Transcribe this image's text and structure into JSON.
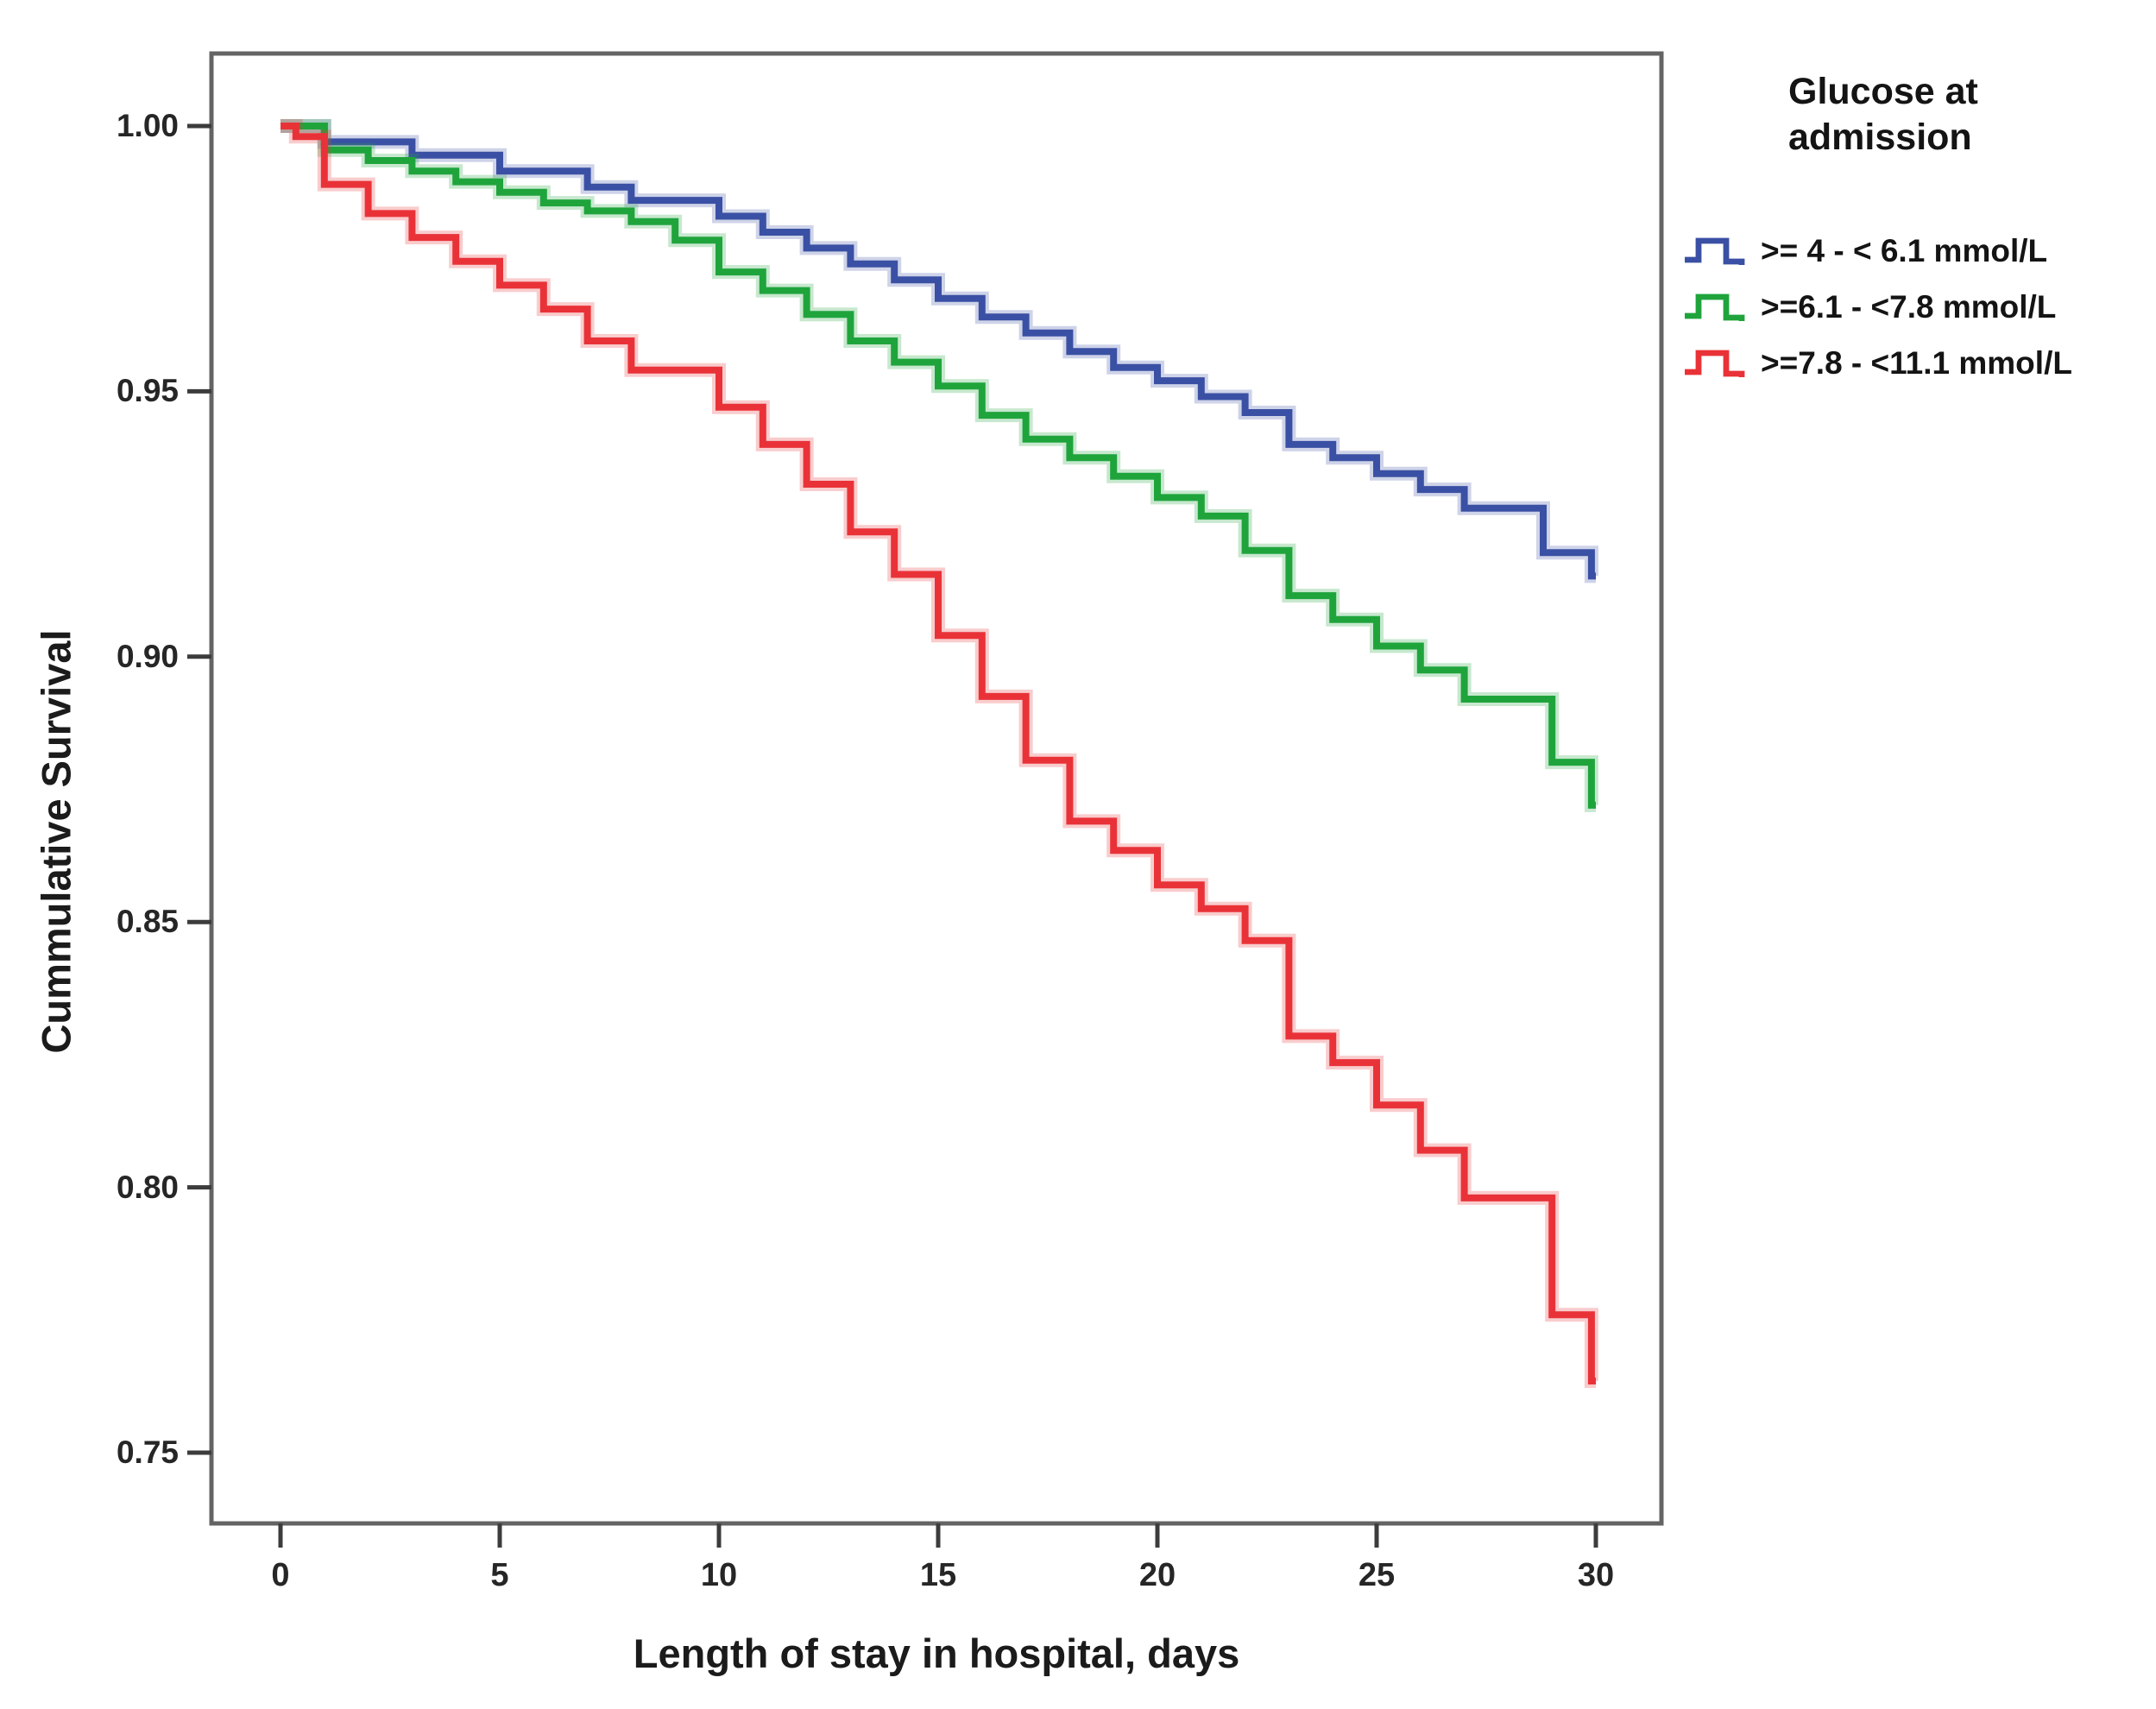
{
  "page": {
    "background": "#ffffff"
  },
  "chart_data": {
    "type": "line",
    "subtype": "kaplan-meier-step",
    "title": "",
    "xlabel": "Length of stay in hospital, days",
    "ylabel": "Cummulative Survival",
    "grid": false,
    "xlim": [
      -1.6,
      31.5
    ],
    "ylim": [
      0.7367,
      1.0137
    ],
    "x_ticks": [
      0,
      5,
      10,
      15,
      20,
      25,
      30
    ],
    "y_ticks": [
      "1.00",
      "0.95",
      "0.90",
      "0.85",
      "0.80",
      "0.75"
    ],
    "y_tick_values": [
      1.0,
      0.95,
      0.9,
      0.85,
      0.8,
      0.75
    ],
    "axis_color": "#646464",
    "tick_color": "#3c3c3c",
    "legend": {
      "position": "right-top",
      "title_lines": [
        "Glucose at",
        "admission"
      ],
      "entries": [
        {
          "label": ">= 4 - < 6.1 mmol/L",
          "color": "#3A50A4"
        },
        {
          "label": ">=6.1 - <7.8 mmol/L",
          "color": "#1FA43C"
        },
        {
          "label": ">=7.8 - <11.1 mmol/L",
          "color": "#E93238"
        }
      ]
    },
    "series": [
      {
        "name": ">= 4 - < 6.1 mmol/L",
        "color": "#3A50A4",
        "step_points": [
          [
            0,
            1.0
          ],
          [
            1,
            0.997
          ],
          [
            3,
            0.9945
          ],
          [
            5,
            0.9915
          ],
          [
            7,
            0.9885
          ],
          [
            8,
            0.986
          ],
          [
            10,
            0.983
          ],
          [
            11,
            0.98
          ],
          [
            12,
            0.977
          ],
          [
            13,
            0.974
          ],
          [
            14,
            0.971
          ],
          [
            15,
            0.9675
          ],
          [
            16,
            0.964
          ],
          [
            17,
            0.961
          ],
          [
            18,
            0.9575
          ],
          [
            19,
            0.9545
          ],
          [
            20,
            0.952
          ],
          [
            21,
            0.949
          ],
          [
            22,
            0.946
          ],
          [
            23,
            0.94
          ],
          [
            24,
            0.9375
          ],
          [
            25,
            0.9345
          ],
          [
            26,
            0.9315
          ],
          [
            27,
            0.928
          ],
          [
            28.8,
            0.9196
          ],
          [
            29.9,
            0.9152
          ],
          [
            30,
            0.9152
          ]
        ]
      },
      {
        "name": ">=6.1 - <7.8 mmol/L",
        "color": "#1FA43C",
        "step_points": [
          [
            0,
            1.0
          ],
          [
            1,
            0.9955
          ],
          [
            2,
            0.9935
          ],
          [
            3,
            0.9915
          ],
          [
            4,
            0.9895
          ],
          [
            5,
            0.9875
          ],
          [
            6,
            0.9855
          ],
          [
            7,
            0.984
          ],
          [
            8,
            0.982
          ],
          [
            9,
            0.9785
          ],
          [
            10,
            0.9725
          ],
          [
            11,
            0.969
          ],
          [
            12,
            0.9645
          ],
          [
            13,
            0.9595
          ],
          [
            14,
            0.9555
          ],
          [
            15,
            0.951
          ],
          [
            16,
            0.9455
          ],
          [
            17,
            0.941
          ],
          [
            18,
            0.9375
          ],
          [
            19,
            0.934
          ],
          [
            20,
            0.93
          ],
          [
            21,
            0.9265
          ],
          [
            22,
            0.92
          ],
          [
            23,
            0.9115
          ],
          [
            24,
            0.907
          ],
          [
            25,
            0.902
          ],
          [
            26,
            0.8975
          ],
          [
            27,
            0.892
          ],
          [
            29,
            0.8801
          ],
          [
            29.9,
            0.872
          ],
          [
            30,
            0.872
          ]
        ]
      },
      {
        "name": ">=7.8 - <11.1 mmol/L",
        "color": "#E93238",
        "step_points": [
          [
            0,
            1.0
          ],
          [
            0.35,
            0.998
          ],
          [
            1,
            0.989
          ],
          [
            2,
            0.9835
          ],
          [
            3,
            0.979
          ],
          [
            4,
            0.9745
          ],
          [
            5,
            0.97
          ],
          [
            6,
            0.9655
          ],
          [
            7,
            0.9595
          ],
          [
            8,
            0.954
          ],
          [
            10,
            0.947
          ],
          [
            11,
            0.94
          ],
          [
            12,
            0.9325
          ],
          [
            13,
            0.9235
          ],
          [
            14,
            0.9155
          ],
          [
            15,
            0.904
          ],
          [
            16,
            0.8925
          ],
          [
            17,
            0.8805
          ],
          [
            18,
            0.869
          ],
          [
            19,
            0.8635
          ],
          [
            20,
            0.857
          ],
          [
            21,
            0.8525
          ],
          [
            22,
            0.8465
          ],
          [
            23,
            0.8285
          ],
          [
            24,
            0.8235
          ],
          [
            25,
            0.8155
          ],
          [
            26,
            0.807
          ],
          [
            27,
            0.798
          ],
          [
            29,
            0.776
          ],
          [
            29.9,
            0.7635
          ],
          [
            30,
            0.7635
          ]
        ]
      }
    ]
  }
}
